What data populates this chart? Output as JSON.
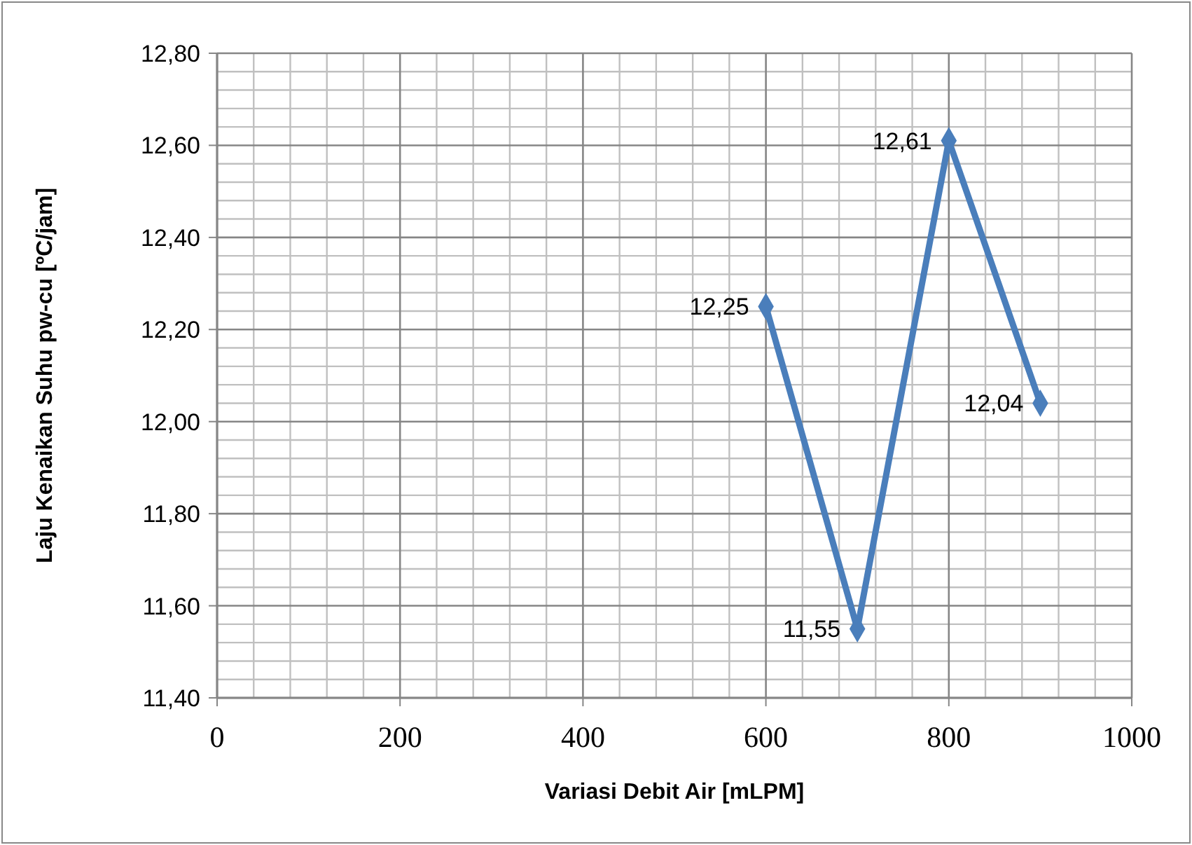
{
  "chart_data": {
    "type": "line",
    "xlabel": "Variasi Debit Air [mLPM]",
    "ylabel": "Laju Kenaikan Suhu pw-cu [ºC/jam]",
    "x": [
      600,
      700,
      800,
      900
    ],
    "series": [
      {
        "color": "#4a7ebb",
        "values": [
          12.25,
          11.55,
          12.61,
          12.04
        ],
        "value_labels": [
          "12,25",
          "11,55",
          "12,61",
          "12,04"
        ]
      }
    ],
    "xlim": [
      0,
      1000
    ],
    "xticks": [
      0,
      200,
      400,
      600,
      800,
      1000
    ],
    "ylim": [
      11.4,
      12.8
    ],
    "yticks": [
      {
        "value": 11.4,
        "label": "11,40"
      },
      {
        "value": 11.6,
        "label": "11,60"
      },
      {
        "value": 11.8,
        "label": "11,80"
      },
      {
        "value": 12.0,
        "label": "12,00"
      },
      {
        "value": 12.2,
        "label": "12,20"
      },
      {
        "value": 12.4,
        "label": "12,40"
      },
      {
        "value": 12.6,
        "label": "12,60"
      },
      {
        "value": 12.8,
        "label": "12,80"
      }
    ],
    "grid": true,
    "marker": "diamond",
    "line_style": "solid"
  }
}
